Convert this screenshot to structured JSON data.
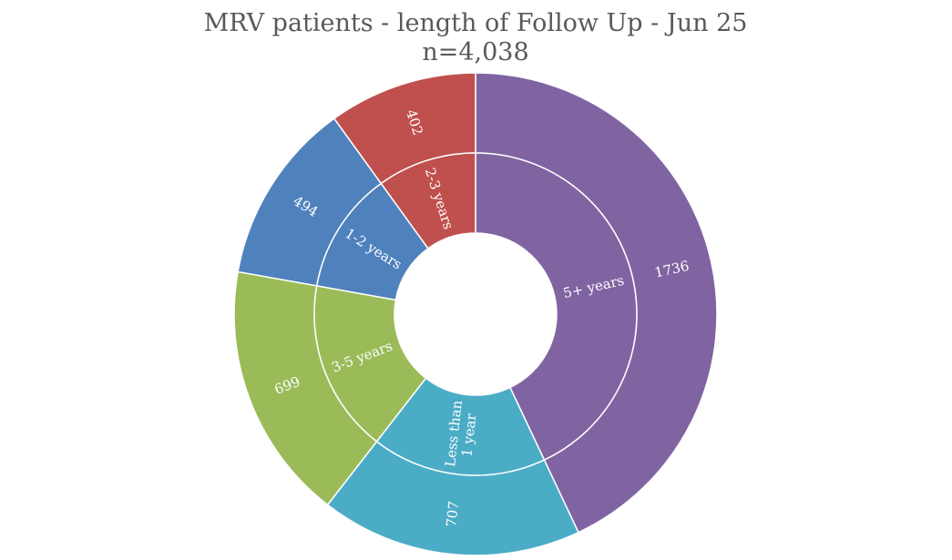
{
  "chart_data": {
    "type": "pie",
    "subtype": "sunburst-doughnut",
    "title": "MRV patients - length of Follow Up - Jun 25",
    "subtitle": "n=4,038",
    "categories": [
      "5+ years",
      "Less than 1 year",
      "3-5 years",
      "1-2 years",
      "2-3 years"
    ],
    "values": [
      1736,
      707,
      699,
      494,
      402
    ],
    "colors": [
      "#8064a2",
      "#4bacc6",
      "#9bbb59",
      "#4f81bd",
      "#c0504d"
    ],
    "legend": "none"
  }
}
